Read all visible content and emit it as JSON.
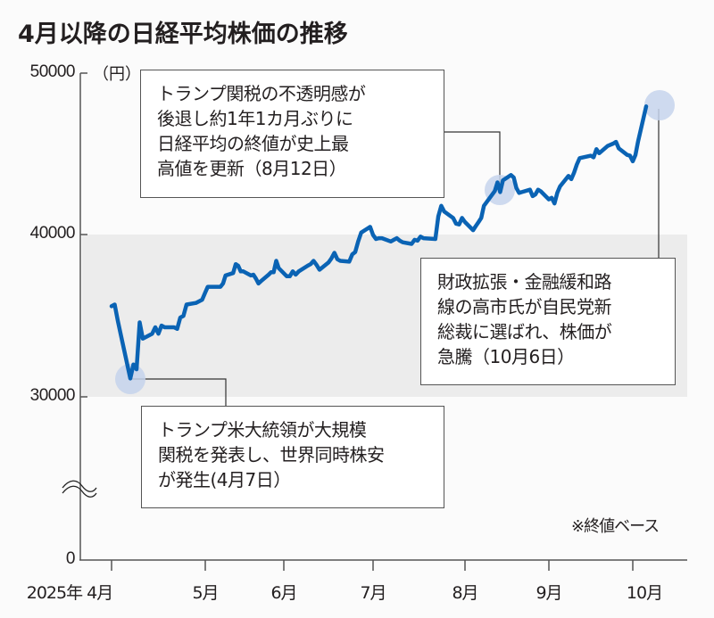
{
  "title": "4月以降の日経平均株価の推移",
  "unit_label": "（円）",
  "note": "※終値ベース",
  "colors": {
    "line": "#0a63b4",
    "highlight_circle": "#c5d3ec",
    "band": "#ececec",
    "axis": "#555555",
    "background": "#fbfbfb"
  },
  "callouts": {
    "aug12": "トランプ関税の不透明感が\n後退し約1年1カ月ぶりに\n日経平均の終値が史上最\n高値を更新（8月12日）",
    "oct6": "財政拡張・金融緩和路\n線の高市氏が自民党新\n総裁に選ばれ、株価が\n急騰（10月6日）",
    "apr7": "トランプ米大統領が大規模\n関税を発表し、世界同時株安\nが発生(4月7日）"
  },
  "chart_data": {
    "type": "line",
    "title": "4月以降の日経平均株価の推移",
    "xlabel": "",
    "ylabel": "（円）",
    "y_ticks": [
      "50000",
      "40000",
      "30000",
      "0"
    ],
    "x_ticks": [
      "2025年 4月",
      "5月",
      "6月",
      "7月",
      "8月",
      "9月",
      "10月"
    ],
    "ylim": [
      0,
      50000
    ],
    "axis_break": "between 0 and 30000",
    "grid": false,
    "shaded_band": [
      30000,
      40000
    ],
    "series": [
      {
        "name": "日経平均株価（終値）",
        "points": [
          [
            "4/1",
            35600
          ],
          [
            "4/2",
            35700
          ],
          [
            "4/3",
            34700
          ],
          [
            "4/4",
            33800
          ],
          [
            "4/7",
            31136
          ],
          [
            "4/8",
            32000
          ],
          [
            "4/9",
            31700
          ],
          [
            "4/10",
            34600
          ],
          [
            "4/11",
            33600
          ],
          [
            "4/14",
            33900
          ],
          [
            "4/15",
            34300
          ],
          [
            "4/16",
            33900
          ],
          [
            "4/17",
            34400
          ],
          [
            "4/18",
            34300
          ],
          [
            "4/21",
            34300
          ],
          [
            "4/22",
            34200
          ],
          [
            "4/23",
            34900
          ],
          [
            "4/24",
            35000
          ],
          [
            "4/25",
            35700
          ],
          [
            "4/28",
            35800
          ],
          [
            "4/30",
            36000
          ],
          [
            "5/1",
            36450
          ],
          [
            "5/2",
            36800
          ],
          [
            "5/7",
            36800
          ],
          [
            "5/8",
            37000
          ],
          [
            "5/9",
            37500
          ],
          [
            "5/12",
            37650
          ],
          [
            "5/13",
            38200
          ],
          [
            "5/14",
            38100
          ],
          [
            "5/15",
            37750
          ],
          [
            "5/16",
            37750
          ],
          [
            "5/19",
            37500
          ],
          [
            "5/20",
            37550
          ],
          [
            "5/21",
            37300
          ],
          [
            "5/22",
            37000
          ],
          [
            "5/23",
            37150
          ],
          [
            "5/26",
            37550
          ],
          [
            "5/27",
            37700
          ],
          [
            "5/28",
            37700
          ],
          [
            "5/29",
            38400
          ],
          [
            "5/30",
            37950
          ],
          [
            "6/2",
            37450
          ],
          [
            "6/3",
            37450
          ],
          [
            "6/4",
            37750
          ],
          [
            "6/5",
            37550
          ],
          [
            "6/6",
            37750
          ],
          [
            "6/9",
            38100
          ],
          [
            "6/10",
            38200
          ],
          [
            "6/11",
            38400
          ],
          [
            "6/12",
            38150
          ],
          [
            "6/13",
            37850
          ],
          [
            "6/16",
            38300
          ],
          [
            "6/17",
            38550
          ],
          [
            "6/18",
            38900
          ],
          [
            "6/19",
            38500
          ],
          [
            "6/20",
            38400
          ],
          [
            "6/23",
            38350
          ],
          [
            "6/24",
            38800
          ],
          [
            "6/25",
            38950
          ],
          [
            "6/26",
            39600
          ],
          [
            "6/27",
            40150
          ],
          [
            "6/30",
            40500
          ],
          [
            "7/1",
            40000
          ],
          [
            "7/2",
            39750
          ],
          [
            "7/3",
            39800
          ],
          [
            "7/4",
            39800
          ],
          [
            "7/7",
            39600
          ],
          [
            "7/8",
            39700
          ],
          [
            "7/9",
            39800
          ],
          [
            "7/10",
            39650
          ],
          [
            "7/11",
            39550
          ],
          [
            "7/14",
            39450
          ],
          [
            "7/15",
            39700
          ],
          [
            "7/16",
            39650
          ],
          [
            "7/17",
            39900
          ],
          [
            "7/18",
            39800
          ],
          [
            "7/22",
            39750
          ],
          [
            "7/23",
            41150
          ],
          [
            "7/24",
            41800
          ],
          [
            "7/25",
            41450
          ],
          [
            "7/28",
            41050
          ],
          [
            "7/29",
            40700
          ],
          [
            "7/30",
            40650
          ],
          [
            "7/31",
            41050
          ],
          [
            "8/1",
            40800
          ],
          [
            "8/4",
            40300
          ],
          [
            "8/5",
            40550
          ],
          [
            "8/6",
            40800
          ],
          [
            "8/7",
            41050
          ],
          [
            "8/8",
            41800
          ],
          [
            "8/12",
            42718
          ],
          [
            "8/13",
            43250
          ],
          [
            "8/14",
            42650
          ],
          [
            "8/15",
            43380
          ],
          [
            "8/18",
            43700
          ],
          [
            "8/19",
            43550
          ],
          [
            "8/20",
            42900
          ],
          [
            "8/21",
            42600
          ],
          [
            "8/22",
            42650
          ],
          [
            "8/25",
            42800
          ],
          [
            "8/26",
            42400
          ],
          [
            "8/27",
            42500
          ],
          [
            "8/28",
            42800
          ],
          [
            "8/29",
            42700
          ],
          [
            "9/1",
            42200
          ],
          [
            "9/2",
            42300
          ],
          [
            "9/3",
            41950
          ],
          [
            "9/4",
            42600
          ],
          [
            "9/5",
            43000
          ],
          [
            "9/8",
            43650
          ],
          [
            "9/9",
            43450
          ],
          [
            "9/10",
            43850
          ],
          [
            "9/11",
            44350
          ],
          [
            "9/12",
            44750
          ],
          [
            "9/16",
            44900
          ],
          [
            "9/17",
            44800
          ],
          [
            "9/18",
            45300
          ],
          [
            "9/19",
            45050
          ],
          [
            "9/22",
            45500
          ],
          [
            "9/24",
            45650
          ],
          [
            "9/25",
            45750
          ],
          [
            "9/26",
            45350
          ],
          [
            "9/29",
            44950
          ],
          [
            "9/30",
            44900
          ],
          [
            "10/1",
            44550
          ],
          [
            "10/2",
            44950
          ],
          [
            "10/3",
            45800
          ],
          [
            "10/6",
            47944
          ]
        ]
      }
    ],
    "annotations": [
      {
        "date": "4/7",
        "text": "トランプ米大統領が大規模関税を発表し、世界同時株安が発生(4月7日）"
      },
      {
        "date": "8/12",
        "text": "トランプ関税の不透明感が後退し約1年1カ月ぶりに日経平均の終値が史上最高値を更新（8月12日）"
      },
      {
        "date": "10/6",
        "text": "財政拡張・金融緩和路線の高市氏が自民党新総裁に選ばれ、株価が急騰（10月6日）"
      }
    ]
  }
}
